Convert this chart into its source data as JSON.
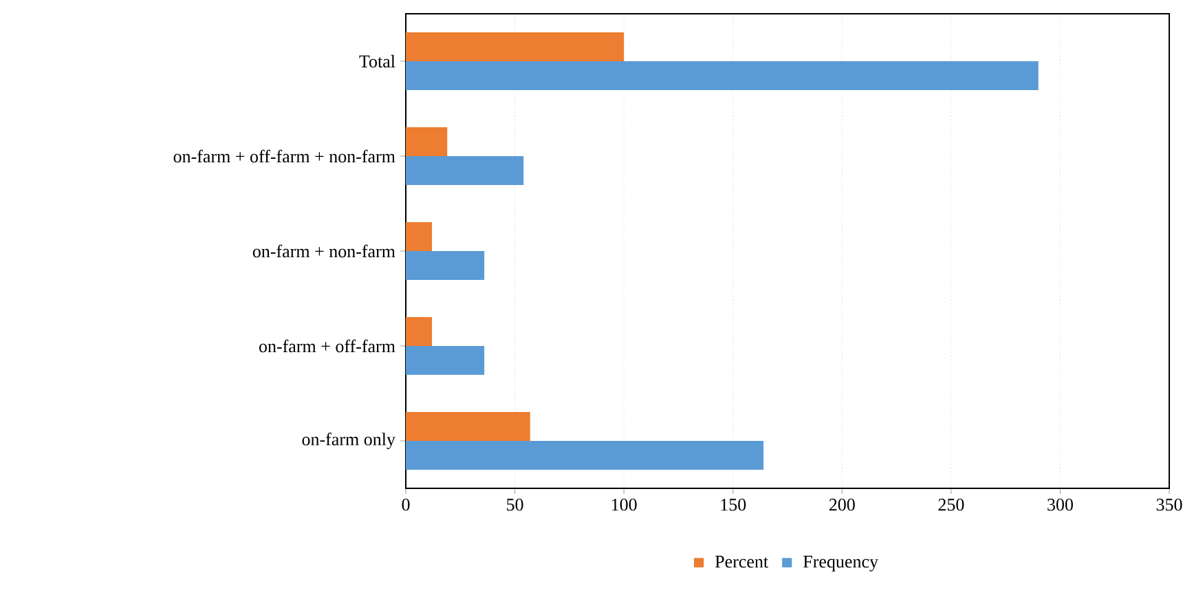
{
  "chart_data": {
    "type": "bar",
    "orientation": "horizontal",
    "categories": [
      "Total",
      "on-farm + off-farm + non-farm",
      "on-farm + non-farm",
      "on-farm + off-farm",
      "on-farm only"
    ],
    "series": [
      {
        "name": "Percent",
        "color": "#ed7d31",
        "values": [
          100,
          19,
          12,
          12,
          57
        ]
      },
      {
        "name": "Frequency",
        "color": "#5b9bd5",
        "values": [
          290,
          54,
          36,
          36,
          164
        ]
      }
    ],
    "xlim": [
      0,
      350
    ],
    "xticks": [
      0,
      50,
      100,
      150,
      200,
      250,
      300,
      350
    ],
    "grid": "x",
    "legend": "bottom"
  }
}
